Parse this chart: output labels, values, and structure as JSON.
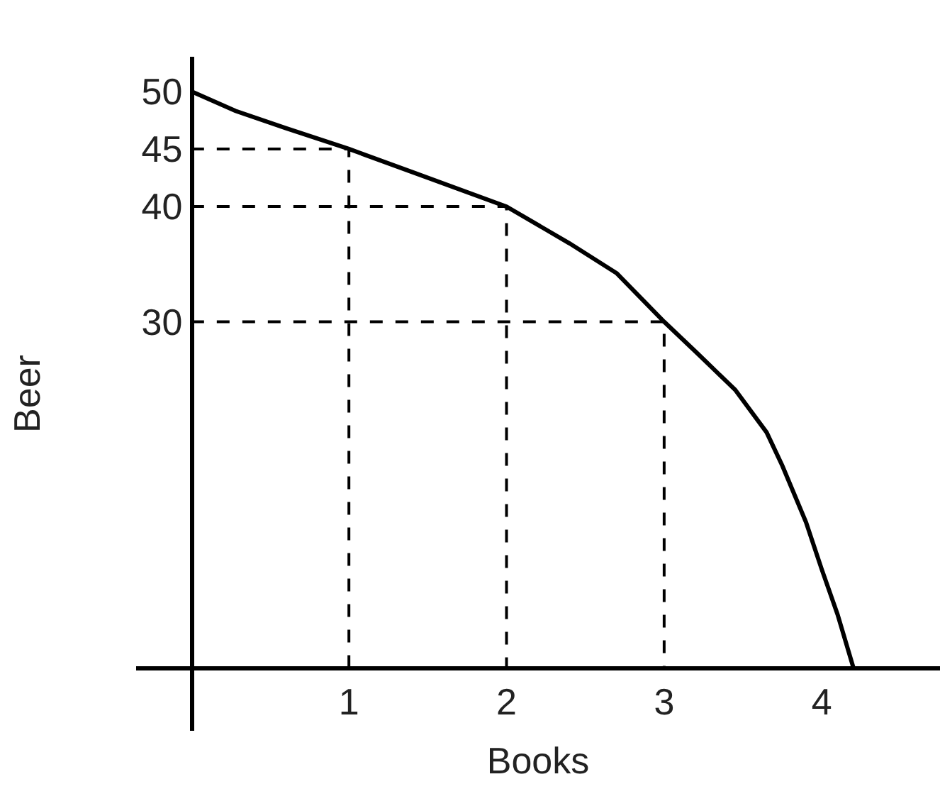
{
  "chart_data": {
    "type": "line",
    "xlabel": "Books",
    "ylabel": "Beer",
    "xlim": [
      -0.35,
      4.75
    ],
    "ylim": [
      -5.5,
      53
    ],
    "xticks": [
      1,
      2,
      3,
      4
    ],
    "yticks": [
      30,
      40,
      45,
      50
    ],
    "grid": false,
    "series": [
      {
        "color": "#000000",
        "line_style": "solid",
        "x": [
          0,
          0.28,
          0.6,
          1,
          1.4,
          2,
          2.4,
          2.7,
          3,
          3.2,
          3.45,
          3.65,
          3.75,
          3.9,
          4,
          4.1,
          4.2
        ],
        "values": [
          50,
          48.3,
          46.8,
          45,
          43,
          40,
          36.8,
          34.2,
          30,
          27.4,
          24.1,
          20.4,
          17.5,
          12.6,
          8.5,
          4.6,
          0
        ]
      },
      {
        "color": "#000000",
        "line_style": "dashed",
        "x": [
          0,
          1,
          1
        ],
        "values": [
          45,
          45,
          0
        ]
      },
      {
        "color": "#000000",
        "line_style": "dashed",
        "x": [
          0,
          2,
          2
        ],
        "values": [
          40,
          40,
          0
        ]
      },
      {
        "color": "#000000",
        "line_style": "dashed",
        "x": [
          0,
          3,
          3
        ],
        "values": [
          30,
          30,
          0
        ]
      }
    ]
  }
}
